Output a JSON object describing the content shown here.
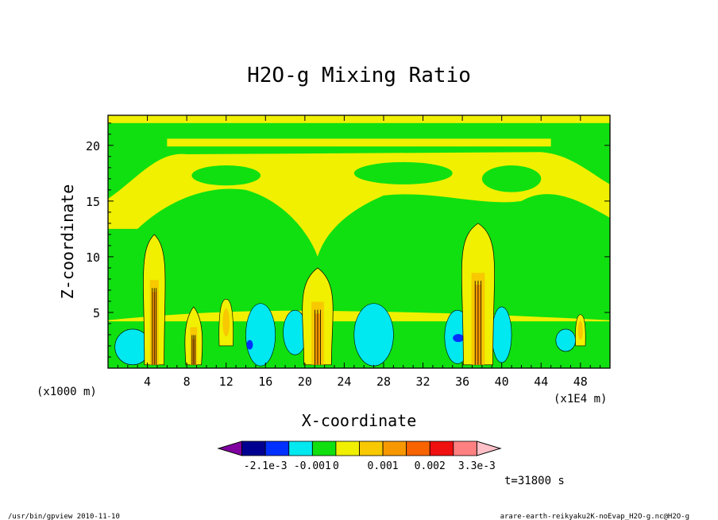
{
  "chart_data": {
    "type": "heatmap",
    "title": "H2O-g Mixing Ratio",
    "xlabel": "X-coordinate",
    "ylabel": "Z-coordinate",
    "x_units_left": "(x1000 m)",
    "x_units_right": "(x1E4 m)",
    "xlim": [
      0,
      51
    ],
    "ylim": [
      0,
      22.7
    ],
    "x_ticks": [
      4,
      8,
      12,
      16,
      20,
      24,
      28,
      32,
      36,
      40,
      44,
      48
    ],
    "y_ticks": [
      5,
      10,
      15,
      20
    ],
    "colorbar": {
      "labels": [
        "-2.1e-3",
        "-0.001",
        "0",
        "0.001",
        "0.002",
        "3.3e-3"
      ],
      "colors": [
        "#8000a0",
        "#000090",
        "#0030ff",
        "#00e8f0",
        "#10e010",
        "#f0f000",
        "#f8c800",
        "#f89800",
        "#f86400",
        "#f01010",
        "#ff8080",
        "#ffc0c8"
      ]
    },
    "columns": [
      {
        "x": 4.7,
        "top": 12.0,
        "width": 1.0
      },
      {
        "x": 8.7,
        "top": 5.5,
        "width": 0.8
      },
      {
        "x": 21.3,
        "top": 9.0,
        "width": 1.4
      },
      {
        "x": 37.6,
        "top": 13.0,
        "width": 1.5
      }
    ],
    "moist_blobs": [
      {
        "x": 2.5,
        "z": 1.9,
        "rx": 1.8,
        "rz": 1.6
      },
      {
        "x": 15.5,
        "z": 3.0,
        "rx": 1.5,
        "rz": 2.8
      },
      {
        "x": 19.0,
        "z": 3.2,
        "rx": 1.2,
        "rz": 2.0
      },
      {
        "x": 27.0,
        "z": 3.0,
        "rx": 2.0,
        "rz": 2.8
      },
      {
        "x": 35.5,
        "z": 2.8,
        "rx": 1.3,
        "rz": 2.4
      },
      {
        "x": 40.0,
        "z": 3.0,
        "rx": 1.0,
        "rz": 2.5
      },
      {
        "x": 46.5,
        "z": 2.5,
        "rx": 1.0,
        "rz": 1.0
      }
    ],
    "time_label": "t=31800 s"
  },
  "footer": {
    "left": "/usr/bin/gpview   2010-11-10",
    "right": "arare-earth-reikyaku2K-noEvap_H2O-g.nc@H2O-g"
  }
}
